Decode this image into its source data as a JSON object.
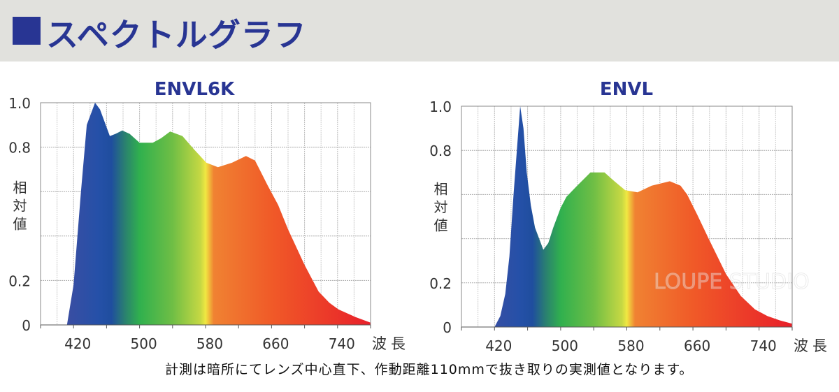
{
  "header": {
    "title": "スペクトルグラフ"
  },
  "footer_note": "計測は暗所にてレンズ中心直下、作動距離110mmで抜き取りの実測値となります。",
  "watermark": "LOUPE STUDIO",
  "colors": {
    "title": "#283593",
    "header_bg": "#e1e1dd"
  },
  "chart_data": [
    {
      "type": "area",
      "title": "ENVL6K",
      "xlabel": "波長",
      "ylabel": "相対値",
      "xlim": [
        380,
        780
      ],
      "ylim": [
        0,
        1.0
      ],
      "x_ticks": [
        420,
        500,
        580,
        660,
        740
      ],
      "y_ticks": [
        "0",
        "0.2",
        "0.8",
        "1.0"
      ],
      "grid": true,
      "fill": "spectrum gradient",
      "x": [
        412,
        420,
        429,
        436,
        446,
        452,
        464,
        471,
        479,
        488,
        500,
        516,
        526,
        537,
        552,
        566,
        581,
        595,
        612,
        629,
        640,
        655,
        668,
        680,
        700,
        717,
        730,
        741,
        762,
        780
      ],
      "y": [
        0,
        0.18,
        0.6,
        0.9,
        1.0,
        0.97,
        0.85,
        0.86,
        0.875,
        0.86,
        0.82,
        0.82,
        0.84,
        0.87,
        0.85,
        0.79,
        0.73,
        0.71,
        0.73,
        0.76,
        0.74,
        0.63,
        0.54,
        0.43,
        0.27,
        0.15,
        0.1,
        0.07,
        0.035,
        0.01
      ]
    },
    {
      "type": "area",
      "title": "ENVL",
      "xlabel": "波長",
      "ylabel": "相対値",
      "xlim": [
        380,
        780
      ],
      "ylim": [
        0,
        1.0
      ],
      "x_ticks": [
        420,
        500,
        580,
        660,
        740
      ],
      "y_ticks": [
        "0",
        "0.2",
        "0.8",
        "1.0"
      ],
      "grid": true,
      "fill": "spectrum gradient",
      "x": [
        420,
        427,
        433,
        438,
        443,
        451,
        455,
        459,
        464,
        469,
        479,
        485,
        491,
        500,
        507,
        520,
        536,
        553,
        565,
        578,
        593,
        610,
        632,
        645,
        653,
        665,
        679,
        700,
        718,
        735,
        750,
        765,
        780
      ],
      "y": [
        0,
        0.05,
        0.15,
        0.32,
        0.6,
        1.0,
        0.9,
        0.7,
        0.55,
        0.45,
        0.35,
        0.38,
        0.45,
        0.54,
        0.59,
        0.64,
        0.7,
        0.7,
        0.66,
        0.62,
        0.61,
        0.64,
        0.66,
        0.64,
        0.6,
        0.51,
        0.4,
        0.24,
        0.14,
        0.08,
        0.05,
        0.03,
        0.015
      ]
    }
  ]
}
